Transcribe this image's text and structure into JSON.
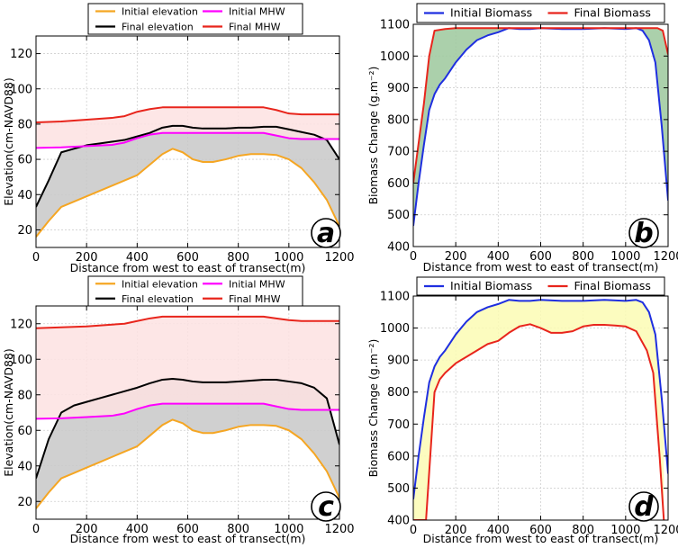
{
  "chart_data": [
    {
      "id": "a",
      "type": "area",
      "panel_label": "a",
      "xlabel": "Distance from west to east of transect(m)",
      "ylabel": "Elevation(cm-NAVD88)",
      "xlim": [
        0,
        1200
      ],
      "ylim": [
        10,
        130
      ],
      "xticks": [
        0,
        200,
        400,
        600,
        800,
        1000,
        1200
      ],
      "yticks": [
        20,
        40,
        60,
        80,
        100,
        120
      ],
      "grid": true,
      "legend_placement": "top-center, outside",
      "fills": [
        {
          "between": [
            "Initial elevation",
            "Final elevation"
          ],
          "color": "#c8c8c8"
        },
        {
          "between": [
            "Initial MHW",
            "Final MHW"
          ],
          "color": "#fde2e2"
        }
      ],
      "series": [
        {
          "name": "Initial elevation",
          "color": "#f5a623",
          "x": [
            0,
            50,
            100,
            150,
            200,
            250,
            300,
            350,
            400,
            450,
            500,
            540,
            580,
            620,
            660,
            700,
            750,
            800,
            850,
            900,
            950,
            1000,
            1050,
            1100,
            1150,
            1200
          ],
          "y": [
            16,
            25,
            33,
            36,
            39,
            42,
            45,
            48,
            51,
            57,
            63,
            66,
            64,
            60,
            58.5,
            58.5,
            60,
            62,
            63,
            63,
            62.5,
            60,
            55,
            47,
            37,
            22
          ]
        },
        {
          "name": "Final elevation",
          "color": "#000000",
          "x": [
            0,
            50,
            100,
            150,
            200,
            250,
            300,
            350,
            400,
            450,
            500,
            540,
            580,
            620,
            660,
            700,
            750,
            800,
            850,
            900,
            950,
            1000,
            1050,
            1100,
            1150,
            1200
          ],
          "y": [
            33,
            48,
            64,
            66,
            68,
            69,
            70,
            71,
            73,
            75,
            78,
            79,
            79,
            78,
            77.5,
            77.5,
            77.5,
            78,
            78,
            78.5,
            78.5,
            77,
            75.5,
            74,
            71,
            60
          ]
        },
        {
          "name": "Initial MHW",
          "color": "#ff00ff",
          "x": [
            0,
            100,
            200,
            300,
            350,
            400,
            450,
            500,
            600,
            700,
            800,
            900,
            950,
            1000,
            1050,
            1100,
            1200
          ],
          "y": [
            66.5,
            66.8,
            67.5,
            68.2,
            69.5,
            72,
            74,
            75,
            75,
            75,
            75,
            75,
            73.5,
            72,
            71.5,
            71.5,
            71.5
          ]
        },
        {
          "name": "Final MHW",
          "color": "#e8251c",
          "x": [
            0,
            100,
            200,
            300,
            350,
            400,
            450,
            500,
            600,
            700,
            800,
            900,
            950,
            1000,
            1050,
            1100,
            1200
          ],
          "y": [
            81,
            81.5,
            82.5,
            83.5,
            84.5,
            87,
            88.5,
            89.5,
            89.5,
            89.5,
            89.5,
            89.5,
            88,
            86,
            85.5,
            85.5,
            85.5
          ]
        }
      ]
    },
    {
      "id": "b",
      "type": "area",
      "panel_label": "b",
      "xlabel": "Distance from west to east of transect(m)",
      "ylabel": "Biomass Change (g.m⁻²)",
      "xlim": [
        0,
        1200
      ],
      "ylim": [
        400,
        1100
      ],
      "xticks": [
        0,
        200,
        400,
        600,
        800,
        1000,
        1200
      ],
      "yticks": [
        400,
        500,
        600,
        700,
        800,
        900,
        1000,
        1100
      ],
      "grid": true,
      "legend_placement": "top-center, outside",
      "fills": [
        {
          "between": [
            "Initial Biomass",
            "Final Biomass"
          ],
          "color": "#9cc89c"
        }
      ],
      "series": [
        {
          "name": "Initial Biomass",
          "color": "#1f2fe0",
          "x": [
            0,
            25,
            50,
            75,
            100,
            125,
            150,
            200,
            250,
            300,
            350,
            400,
            450,
            500,
            550,
            600,
            700,
            800,
            900,
            1000,
            1050,
            1080,
            1110,
            1140,
            1170,
            1200
          ],
          "y": [
            465,
            600,
            720,
            830,
            880,
            910,
            930,
            980,
            1020,
            1050,
            1065,
            1075,
            1088,
            1085,
            1085,
            1088,
            1085,
            1085,
            1088,
            1085,
            1088,
            1080,
            1050,
            980,
            780,
            545
          ]
        },
        {
          "name": "Final Biomass",
          "color": "#e8251c",
          "x": [
            0,
            50,
            75,
            100,
            150,
            200,
            300,
            400,
            500,
            600,
            700,
            800,
            900,
            1000,
            1100,
            1150,
            1175,
            1200
          ],
          "y": [
            600,
            850,
            1000,
            1080,
            1085,
            1088,
            1088,
            1088,
            1088,
            1088,
            1088,
            1088,
            1088,
            1088,
            1088,
            1088,
            1080,
            1005
          ]
        }
      ]
    },
    {
      "id": "c",
      "type": "area",
      "panel_label": "c",
      "xlabel": "Distance from west to east of transect(m)",
      "ylabel": "Elevation(cm-NAVD88)",
      "xlim": [
        0,
        1200
      ],
      "ylim": [
        10,
        130
      ],
      "xticks": [
        0,
        200,
        400,
        600,
        800,
        1000,
        1200
      ],
      "yticks": [
        20,
        40,
        60,
        80,
        100,
        120
      ],
      "grid": true,
      "legend_placement": "top-center, outside",
      "fills": [
        {
          "between": [
            "Initial elevation",
            "Final elevation"
          ],
          "color": "#c8c8c8"
        },
        {
          "between": [
            "Initial MHW",
            "Final MHW"
          ],
          "color": "#fde2e2"
        }
      ],
      "series": [
        {
          "name": "Initial elevation",
          "color": "#f5a623",
          "x": [
            0,
            50,
            100,
            150,
            200,
            250,
            300,
            350,
            400,
            450,
            500,
            540,
            580,
            620,
            660,
            700,
            750,
            800,
            850,
            900,
            950,
            1000,
            1050,
            1100,
            1150,
            1200
          ],
          "y": [
            16,
            25,
            33,
            36,
            39,
            42,
            45,
            48,
            51,
            57,
            63,
            66,
            64,
            60,
            58.5,
            58.5,
            60,
            62,
            63,
            63,
            62.5,
            60,
            55,
            47,
            37,
            22
          ]
        },
        {
          "name": "Final elevation",
          "color": "#000000",
          "x": [
            0,
            50,
            100,
            150,
            200,
            250,
            300,
            350,
            400,
            450,
            500,
            540,
            580,
            620,
            660,
            700,
            750,
            800,
            850,
            900,
            950,
            1000,
            1050,
            1100,
            1150,
            1200
          ],
          "y": [
            33,
            55,
            70,
            74,
            76,
            78,
            80,
            82,
            84,
            86.5,
            88.5,
            89,
            88.5,
            87.5,
            87,
            87,
            87,
            87.5,
            88,
            88.5,
            88.5,
            87.5,
            86.5,
            84,
            78,
            52
          ]
        },
        {
          "name": "Initial MHW",
          "color": "#ff00ff",
          "x": [
            0,
            100,
            200,
            300,
            350,
            400,
            450,
            500,
            600,
            700,
            800,
            900,
            950,
            1000,
            1050,
            1100,
            1200
          ],
          "y": [
            66.5,
            66.8,
            67.5,
            68.2,
            69.5,
            72,
            74,
            75,
            75,
            75,
            75,
            75,
            73.5,
            72,
            71.5,
            71.5,
            71.5
          ]
        },
        {
          "name": "Final MHW",
          "color": "#e8251c",
          "x": [
            0,
            100,
            200,
            300,
            350,
            400,
            450,
            500,
            600,
            700,
            800,
            900,
            950,
            1000,
            1050,
            1100,
            1200
          ],
          "y": [
            117.5,
            118,
            118.5,
            119.5,
            120,
            121.5,
            123,
            124,
            124,
            124,
            124,
            124,
            123,
            122,
            121.5,
            121.5,
            121.5
          ]
        }
      ]
    },
    {
      "id": "d",
      "type": "area",
      "panel_label": "d",
      "xlabel": "Distance from west to east of transect(m)",
      "ylabel": "Biomass Change (g.m⁻²)",
      "xlim": [
        0,
        1200
      ],
      "ylim": [
        400,
        1100
      ],
      "xticks": [
        0,
        200,
        400,
        600,
        800,
        1000,
        1200
      ],
      "yticks": [
        400,
        500,
        600,
        700,
        800,
        900,
        1000,
        1100
      ],
      "grid": true,
      "legend_placement": "top-center, outside",
      "fills": [
        {
          "between": [
            "Initial Biomass",
            "Final Biomass"
          ],
          "color": "#fcfcb4"
        }
      ],
      "series": [
        {
          "name": "Initial Biomass",
          "color": "#1f2fe0",
          "x": [
            0,
            25,
            50,
            75,
            100,
            125,
            150,
            200,
            250,
            300,
            350,
            400,
            450,
            500,
            550,
            600,
            700,
            800,
            900,
            1000,
            1050,
            1080,
            1110,
            1140,
            1170,
            1200
          ],
          "y": [
            465,
            600,
            720,
            830,
            880,
            910,
            930,
            980,
            1020,
            1050,
            1065,
            1075,
            1088,
            1085,
            1085,
            1088,
            1085,
            1085,
            1088,
            1085,
            1088,
            1080,
            1050,
            980,
            780,
            545
          ]
        },
        {
          "name": "Final Biomass",
          "color": "#e8251c",
          "x": [
            0,
            20,
            40,
            60,
            80,
            100,
            125,
            150,
            200,
            250,
            300,
            350,
            400,
            450,
            500,
            550,
            600,
            650,
            700,
            750,
            800,
            850,
            900,
            950,
            1000,
            1050,
            1100,
            1130,
            1160,
            1180
          ],
          "y": [
            400,
            400,
            400,
            400,
            600,
            800,
            840,
            860,
            890,
            910,
            930,
            950,
            960,
            985,
            1005,
            1012,
            1000,
            985,
            985,
            990,
            1005,
            1010,
            1010,
            1008,
            1005,
            990,
            930,
            860,
            600,
            400
          ]
        }
      ]
    }
  ]
}
